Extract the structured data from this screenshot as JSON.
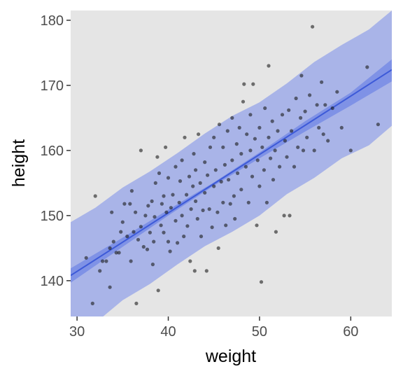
{
  "chart_data": {
    "type": "scatter",
    "title": "",
    "xlabel": "weight",
    "ylabel": "height",
    "xlim": [
      29.3,
      64.5
    ],
    "ylim": [
      134.5,
      181.5
    ],
    "xticks": [
      30,
      40,
      50,
      60
    ],
    "yticks": [
      140,
      150,
      160,
      170,
      180
    ],
    "xtick_labels": [
      "30",
      "40",
      "50",
      "60"
    ],
    "ytick_labels": [
      "140",
      "150",
      "160",
      "170",
      "180"
    ],
    "grid": false,
    "legend": "none",
    "colors": {
      "panel_background": "#e5e5e5",
      "prediction_band": "#a9b4e8",
      "mean_band": "#7f92e6",
      "regression_line": "#3d5ad8",
      "points": "#1a1a1a"
    },
    "regression_line": {
      "x": [
        29.3,
        64.5
      ],
      "y": [
        140.8,
        172.4
      ]
    },
    "mean_interval": {
      "x": [
        29.3,
        35,
        40,
        45,
        50,
        55,
        60,
        64.5
      ],
      "lower": [
        139.7,
        145.2,
        150.0,
        154.6,
        158.8,
        162.9,
        166.9,
        170.6
      ],
      "upper": [
        141.9,
        146.6,
        150.9,
        155.1,
        159.7,
        164.5,
        168.9,
        174.0
      ]
    },
    "prediction_interval": {
      "x": [
        29.3,
        32,
        35,
        38,
        41,
        44,
        47,
        50,
        53,
        56,
        59,
        62,
        64.5
      ],
      "lower": [
        131.0,
        133.5,
        137.0,
        139.5,
        142.5,
        145.3,
        147.5,
        150.0,
        153.3,
        155.8,
        158.8,
        160.8,
        163.8
      ],
      "upper": [
        149.0,
        151.2,
        154.3,
        156.8,
        159.6,
        162.6,
        165.3,
        167.4,
        170.3,
        173.6,
        176.2,
        178.6,
        181.5
      ]
    },
    "points": [
      [
        31.0,
        143.5
      ],
      [
        31.7,
        136.5
      ],
      [
        32.0,
        153.0
      ],
      [
        32.5,
        141.5
      ],
      [
        32.8,
        143.0
      ],
      [
        33.2,
        143.0
      ],
      [
        33.6,
        145.0
      ],
      [
        33.6,
        139.0
      ],
      [
        33.8,
        150.5
      ],
      [
        34.0,
        146.0
      ],
      [
        34.3,
        144.3
      ],
      [
        34.6,
        144.3
      ],
      [
        34.8,
        147.5
      ],
      [
        35.0,
        149.0
      ],
      [
        35.2,
        151.8
      ],
      [
        35.5,
        146.8
      ],
      [
        35.8,
        151.8
      ],
      [
        35.9,
        143.0
      ],
      [
        36.0,
        153.8
      ],
      [
        36.2,
        147.5
      ],
      [
        36.4,
        150.5
      ],
      [
        36.5,
        136.5
      ],
      [
        36.7,
        146.3
      ],
      [
        37.0,
        148.3
      ],
      [
        37.0,
        160.0
      ],
      [
        37.3,
        145.2
      ],
      [
        37.5,
        150.0
      ],
      [
        37.8,
        151.5
      ],
      [
        37.7,
        144.8
      ],
      [
        38.0,
        147.4
      ],
      [
        38.2,
        152.2
      ],
      [
        38.3,
        142.5
      ],
      [
        38.4,
        146.0
      ],
      [
        38.5,
        149.8
      ],
      [
        38.6,
        155.0
      ],
      [
        38.8,
        159.0
      ],
      [
        38.9,
        138.5
      ],
      [
        39.0,
        156.5
      ],
      [
        39.2,
        148.5
      ],
      [
        39.3,
        151.8
      ],
      [
        39.5,
        147.4
      ],
      [
        39.5,
        153.0
      ],
      [
        39.7,
        160.5
      ],
      [
        39.8,
        150.5
      ],
      [
        40.0,
        146.0
      ],
      [
        40.0,
        155.8
      ],
      [
        40.2,
        144.5
      ],
      [
        40.3,
        151.2
      ],
      [
        40.5,
        153.2
      ],
      [
        40.8,
        149.2
      ],
      [
        40.8,
        157.5
      ],
      [
        41.0,
        145.8
      ],
      [
        41.2,
        152.0
      ],
      [
        41.3,
        155.3
      ],
      [
        41.5,
        150.0
      ],
      [
        41.5,
        158.5
      ],
      [
        41.7,
        146.8
      ],
      [
        41.8,
        162.0
      ],
      [
        42.0,
        153.2
      ],
      [
        42.1,
        148.4
      ],
      [
        42.3,
        156.0
      ],
      [
        42.4,
        143.0
      ],
      [
        42.5,
        151.0
      ],
      [
        42.7,
        154.5
      ],
      [
        42.8,
        159.5
      ],
      [
        42.9,
        141.5
      ],
      [
        43.0,
        157.0
      ],
      [
        43.0,
        152.2
      ],
      [
        43.2,
        149.5
      ],
      [
        43.3,
        162.5
      ],
      [
        43.5,
        155.0
      ],
      [
        43.6,
        146.8
      ],
      [
        43.8,
        150.8
      ],
      [
        44.0,
        158.2
      ],
      [
        44.0,
        153.5
      ],
      [
        44.2,
        141.5
      ],
      [
        44.3,
        156.2
      ],
      [
        44.5,
        151.0
      ],
      [
        44.6,
        160.5
      ],
      [
        44.8,
        148.2
      ],
      [
        45.0,
        154.5
      ],
      [
        45.0,
        162.0
      ],
      [
        45.2,
        157.0
      ],
      [
        45.4,
        150.5
      ],
      [
        45.5,
        145.0
      ],
      [
        45.6,
        164.0
      ],
      [
        45.8,
        155.2
      ],
      [
        46.0,
        152.0
      ],
      [
        46.0,
        160.5
      ],
      [
        46.2,
        157.8
      ],
      [
        46.3,
        148.5
      ],
      [
        46.5,
        163.0
      ],
      [
        46.6,
        155.5
      ],
      [
        46.8,
        151.8
      ],
      [
        47.0,
        158.5
      ],
      [
        47.0,
        165.0
      ],
      [
        47.2,
        153.0
      ],
      [
        47.3,
        149.5
      ],
      [
        47.5,
        161.0
      ],
      [
        47.6,
        156.5
      ],
      [
        47.8,
        163.5
      ],
      [
        48.0,
        159.5
      ],
      [
        48.0,
        154.0
      ],
      [
        48.2,
        167.5
      ],
      [
        48.3,
        170.2
      ],
      [
        48.5,
        157.5
      ],
      [
        48.6,
        162.5
      ],
      [
        48.8,
        152.0
      ],
      [
        49.0,
        160.0
      ],
      [
        49.0,
        165.5
      ],
      [
        49.2,
        156.0
      ],
      [
        49.3,
        170.2
      ],
      [
        49.5,
        161.8
      ],
      [
        49.7,
        148.5
      ],
      [
        49.8,
        158.5
      ],
      [
        50.0,
        163.5
      ],
      [
        50.0,
        154.5
      ],
      [
        50.2,
        139.8
      ],
      [
        50.3,
        160.5
      ],
      [
        50.5,
        157.0
      ],
      [
        50.6,
        166.5
      ],
      [
        50.8,
        152.0
      ],
      [
        51.0,
        162.0
      ],
      [
        51.0,
        173.0
      ],
      [
        51.2,
        158.8
      ],
      [
        51.4,
        164.5
      ],
      [
        51.5,
        155.5
      ],
      [
        51.7,
        160.0
      ],
      [
        51.8,
        147.5
      ],
      [
        52.0,
        163.0
      ],
      [
        52.2,
        157.5
      ],
      [
        52.5,
        165.5
      ],
      [
        52.7,
        150.0
      ],
      [
        52.8,
        161.5
      ],
      [
        53.0,
        159.0
      ],
      [
        53.2,
        166.2
      ],
      [
        53.3,
        150.0
      ],
      [
        53.5,
        163.0
      ],
      [
        53.8,
        157.5
      ],
      [
        54.0,
        168.0
      ],
      [
        54.2,
        160.5
      ],
      [
        54.5,
        165.0
      ],
      [
        54.6,
        171.5
      ],
      [
        54.8,
        160.0
      ],
      [
        55.0,
        166.0
      ],
      [
        55.2,
        162.0
      ],
      [
        55.5,
        168.5
      ],
      [
        55.8,
        179.0
      ],
      [
        56.0,
        160.0
      ],
      [
        56.3,
        167.0
      ],
      [
        56.5,
        163.5
      ],
      [
        56.8,
        170.5
      ],
      [
        57.0,
        162.5
      ],
      [
        57.2,
        167.0
      ],
      [
        57.5,
        161.5
      ],
      [
        58.0,
        166.5
      ],
      [
        58.5,
        169.0
      ],
      [
        59.0,
        163.5
      ],
      [
        60.0,
        160.0
      ],
      [
        61.8,
        172.8
      ],
      [
        63.0,
        164.0
      ]
    ]
  }
}
